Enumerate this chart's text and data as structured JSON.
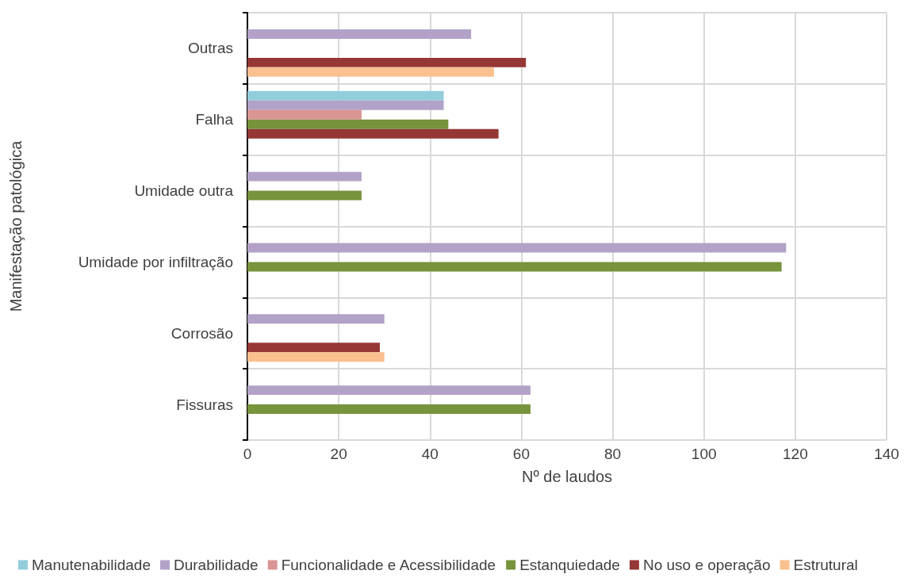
{
  "chart_data": {
    "type": "bar",
    "orientation": "horizontal",
    "xlabel": "Nº de laudos",
    "ylabel": "Manifestação patológica",
    "categories": [
      "Outras",
      "Falha",
      "Umidade outra",
      "Umidade por infiltração",
      "Corrosão",
      "Fissuras"
    ],
    "series": [
      {
        "name": "Manutenabilidade",
        "color": "#92cddc",
        "values": [
          null,
          43,
          null,
          null,
          null,
          null
        ]
      },
      {
        "name": "Durabilidade",
        "color": "#b3a2c7",
        "values": [
          49,
          43,
          25,
          118,
          30,
          62
        ]
      },
      {
        "name": "Funcionalidade e Acessibilidade",
        "color": "#d99694",
        "values": [
          null,
          25,
          null,
          null,
          null,
          null
        ]
      },
      {
        "name": "Estanquiedade",
        "color": "#77933c",
        "values": [
          null,
          44,
          25,
          117,
          null,
          62
        ]
      },
      {
        "name": "No uso e operação",
        "color": "#953735",
        "values": [
          61,
          55,
          null,
          null,
          29,
          null
        ]
      },
      {
        "name": "Estrutural",
        "color": "#fac090",
        "values": [
          54,
          null,
          null,
          null,
          30,
          null
        ]
      }
    ],
    "xlim": [
      0,
      140
    ],
    "xticks": [
      0,
      20,
      40,
      60,
      80,
      100,
      120,
      140
    ],
    "grid": true,
    "legend": "bottom"
  }
}
